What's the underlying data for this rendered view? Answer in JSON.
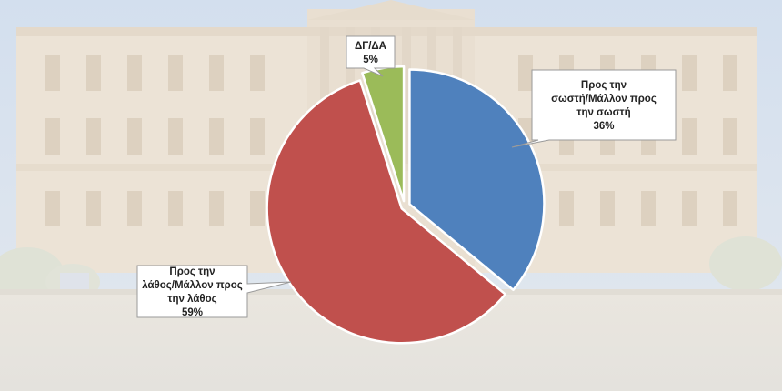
{
  "chart_data": {
    "type": "pie",
    "slices": [
      {
        "label_lines": [
          "Προς την",
          "σωστή/Μάλλον προς",
          "την σωστή"
        ],
        "value": 36,
        "value_label": "36%",
        "color": "#4f81bd"
      },
      {
        "label_lines": [
          "Προς την",
          "λάθος/Μάλλον προς",
          "την λάθος"
        ],
        "value": 59,
        "value_label": "59%",
        "color": "#c0504d"
      },
      {
        "label_lines": [
          "ΔΓ/ΔΑ"
        ],
        "value": 5,
        "value_label": "5%",
        "color": "#9bbb59"
      }
    ],
    "start_angle_deg": 0,
    "direction": "clockwise",
    "exploded": true,
    "legend": "none"
  }
}
